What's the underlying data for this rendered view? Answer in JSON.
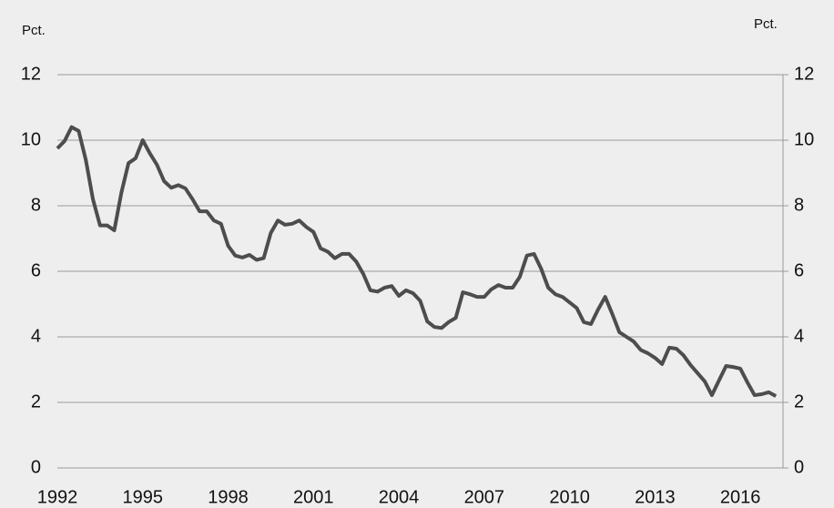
{
  "chart_data": {
    "type": "line",
    "y_label": "Pct.",
    "y2_label": "Pct.",
    "x": [
      1992,
      1992.25,
      1992.5,
      1992.75,
      1993,
      1993.25,
      1993.5,
      1993.75,
      1994,
      1994.25,
      1994.5,
      1994.75,
      1995,
      1995.25,
      1995.5,
      1995.75,
      1996,
      1996.25,
      1996.5,
      1996.75,
      1997,
      1997.25,
      1997.5,
      1997.75,
      1998,
      1998.25,
      1998.5,
      1998.75,
      1999,
      1999.25,
      1999.5,
      1999.75,
      2000,
      2000.25,
      2000.5,
      2000.75,
      2001,
      2001.25,
      2001.5,
      2001.75,
      2002,
      2002.25,
      2002.5,
      2002.75,
      2003,
      2003.25,
      2003.5,
      2003.75,
      2004,
      2004.25,
      2004.5,
      2004.75,
      2005,
      2005.25,
      2005.5,
      2005.75,
      2006,
      2006.25,
      2006.5,
      2006.75,
      2007,
      2007.25,
      2007.5,
      2007.75,
      2008,
      2008.25,
      2008.5,
      2008.75,
      2009,
      2009.25,
      2009.5,
      2009.75,
      2010,
      2010.25,
      2010.5,
      2010.75,
      2011,
      2011.25,
      2011.5,
      2011.75,
      2012,
      2012.25,
      2012.5,
      2012.75,
      2013,
      2013.25,
      2013.5,
      2013.75,
      2014,
      2014.25,
      2014.5,
      2014.75,
      2015,
      2015.25,
      2015.5,
      2015.75,
      2016,
      2016.25,
      2016.5,
      2016.75,
      2017,
      2017.25
    ],
    "values": [
      9.75,
      9.97,
      10.4,
      10.28,
      9.4,
      8.2,
      7.4,
      7.4,
      7.25,
      8.4,
      9.3,
      9.45,
      10.0,
      9.6,
      9.25,
      8.75,
      8.55,
      8.63,
      8.53,
      8.2,
      7.83,
      7.83,
      7.55,
      7.45,
      6.78,
      6.48,
      6.42,
      6.5,
      6.35,
      6.4,
      7.17,
      7.55,
      7.42,
      7.45,
      7.55,
      7.35,
      7.2,
      6.7,
      6.6,
      6.4,
      6.53,
      6.53,
      6.3,
      5.92,
      5.42,
      5.38,
      5.5,
      5.55,
      5.25,
      5.42,
      5.33,
      5.1,
      4.47,
      4.3,
      4.27,
      4.45,
      4.58,
      5.36,
      5.3,
      5.22,
      5.22,
      5.45,
      5.58,
      5.5,
      5.5,
      5.83,
      6.48,
      6.53,
      6.08,
      5.5,
      5.3,
      5.22,
      5.05,
      4.88,
      4.45,
      4.39,
      4.83,
      5.22,
      4.7,
      4.14,
      4.0,
      3.86,
      3.6,
      3.5,
      3.36,
      3.17,
      3.67,
      3.64,
      3.44,
      3.14,
      2.89,
      2.64,
      2.22,
      2.67,
      3.11,
      3.08,
      3.03,
      2.61,
      2.22,
      2.25,
      2.31,
      2.19
    ],
    "color": "#4d4d4d",
    "xlim": [
      1992,
      2017.5
    ],
    "xticks": [
      1992,
      1995,
      1998,
      2001,
      2004,
      2007,
      2010,
      2013,
      2016
    ],
    "ylim": [
      0,
      12
    ],
    "yticks": [
      0,
      2,
      4,
      6,
      8,
      10,
      12
    ],
    "y2lim": [
      0,
      12
    ],
    "y2ticks": [
      0,
      2,
      4,
      6,
      8,
      10,
      12
    ],
    "grid": true
  }
}
